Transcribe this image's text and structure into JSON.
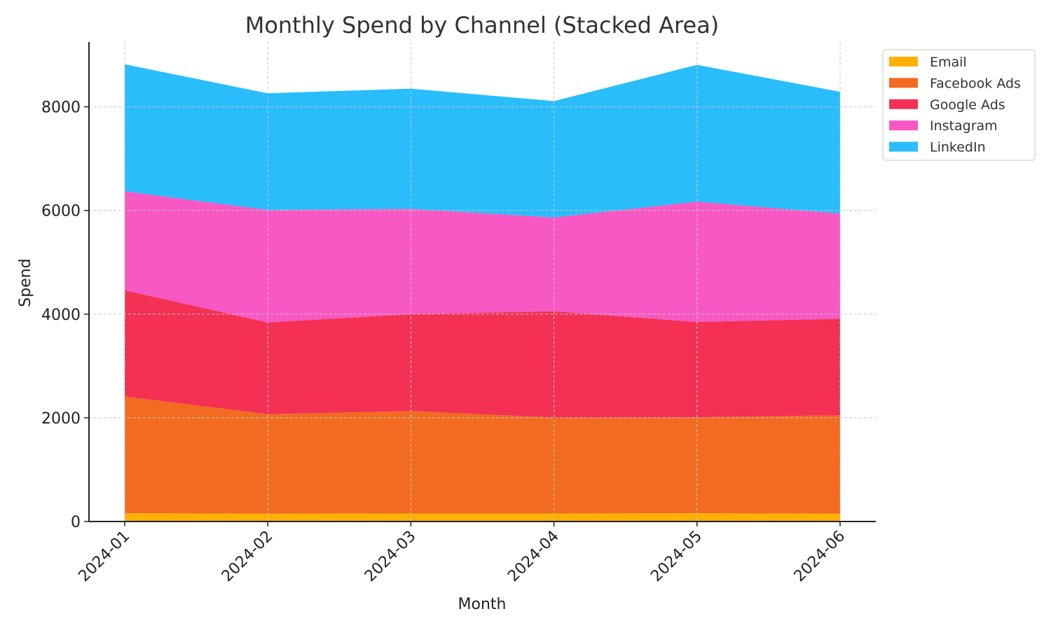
{
  "chart_data": {
    "type": "area",
    "stacked": true,
    "title": "Monthly Spend by Channel (Stacked Area)",
    "xlabel": "Month",
    "ylabel": "Spend",
    "categories": [
      "2024-01",
      "2024-02",
      "2024-03",
      "2024-04",
      "2024-05",
      "2024-06"
    ],
    "ylim": [
      0,
      9250
    ],
    "yticks": [
      0,
      2000,
      4000,
      6000,
      8000
    ],
    "grid": true,
    "legend_position": "top-right outside",
    "series": [
      {
        "name": "Email",
        "color": "#ffb000",
        "values": [
          160,
          150,
          155,
          155,
          160,
          150
        ]
      },
      {
        "name": "Facebook Ads",
        "color": "#f26b21",
        "values": [
          2250,
          1920,
          1975,
          1850,
          1850,
          1900
        ]
      },
      {
        "name": "Google Ads",
        "color": "#f43054",
        "values": [
          2050,
          1770,
          1870,
          2050,
          1840,
          1860
        ]
      },
      {
        "name": "Instagram",
        "color": "#f858c3",
        "values": [
          1910,
          2170,
          2030,
          1810,
          2320,
          2030
        ]
      },
      {
        "name": "LinkedIn",
        "color": "#2abdfc",
        "values": [
          2450,
          2250,
          2320,
          2245,
          2640,
          2350
        ]
      }
    ]
  }
}
